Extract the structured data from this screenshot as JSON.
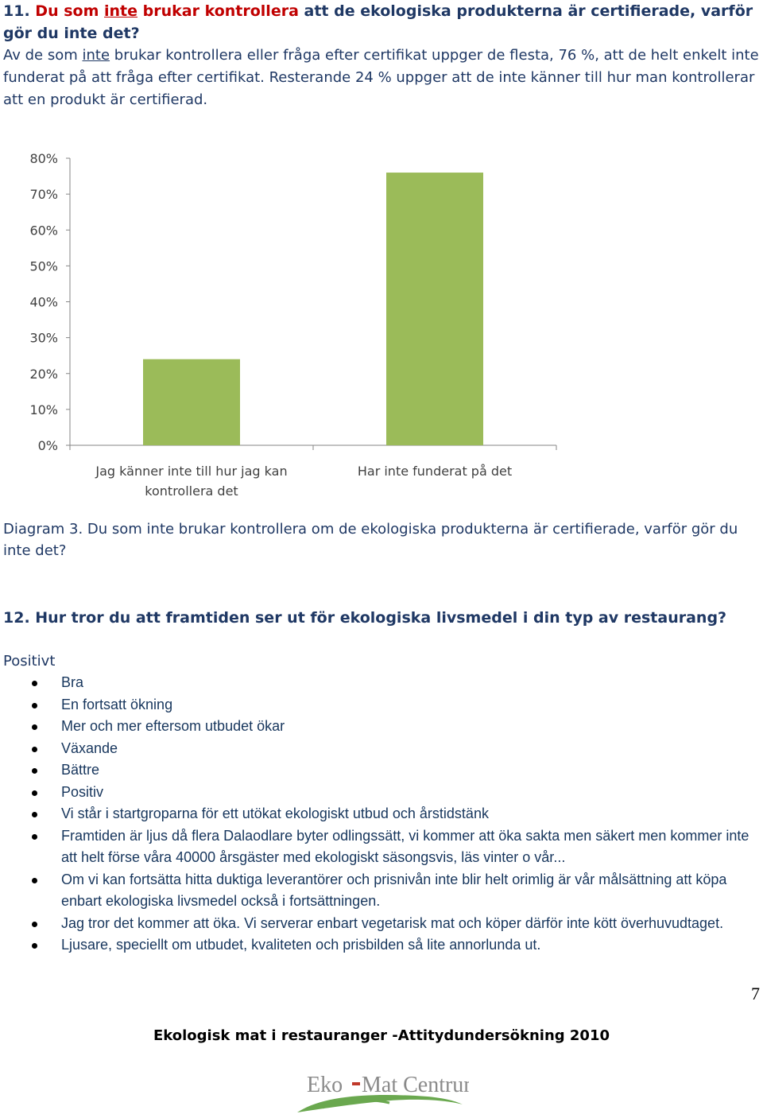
{
  "question11": {
    "number": "11.",
    "part1": "Du som",
    "underlined": "inte",
    "part2": "brukar kontrollera",
    "rest": "att de ekologiska produkterna är certifierade, varför gör du inte det?"
  },
  "intro": {
    "part1": "Av de som",
    "underlined": "inte",
    "part2": "brukar kontrollera eller fråga efter certifikat uppger de flesta, 76 %, att de helt enkelt inte funderat på att fråga efter certifikat. Resterande 24 % uppger att de inte känner till hur man kontrollerar att en produkt är certifierad."
  },
  "chart_data": {
    "type": "bar",
    "categories": [
      "Jag känner inte till hur jag kan kontrollera det",
      "Har inte funderat på det"
    ],
    "category_lines": [
      [
        "Jag känner inte till hur jag kan",
        "kontrollera det"
      ],
      [
        "Har inte funderat på det"
      ]
    ],
    "values": [
      24,
      76
    ],
    "ylim": [
      0,
      80
    ],
    "yticks": [
      "0%",
      "10%",
      "20%",
      "30%",
      "40%",
      "50%",
      "60%",
      "70%",
      "80%"
    ],
    "bar_color": "#9bbb59",
    "grid": false,
    "title": "",
    "xlabel": "",
    "ylabel": ""
  },
  "caption": "Diagram 3. Du som inte brukar kontrollera om de ekologiska produkterna är certifierade, varför gör du inte det?",
  "question12": "12. Hur tror du att framtiden ser ut för ekologiska livsmedel i din typ av restaurang?",
  "positive": {
    "heading": "Positivt",
    "items": [
      "Bra",
      "En fortsatt ökning",
      "Mer och mer eftersom utbudet ökar",
      "Växande",
      "Bättre",
      "Positiv",
      "Vi står i startgroparna för ett utökat ekologiskt utbud och årstidstänk",
      "Framtiden är ljus då flera Dalaodlare byter odlingssätt, vi kommer att öka sakta men säkert men kommer inte att helt förse våra 40000 årsgäster med ekologiskt säsongsvis, läs vinter o vår...",
      "Om vi kan fortsätta hitta duktiga leverantörer och prisnivån inte blir helt orimlig är vår målsättning att köpa enbart ekologiska livsmedel också i fortsättningen.",
      "Jag tror det kommer att öka. Vi serverar enbart vegetarisk mat och köper därför inte kött överhuvudtaget.",
      "Ljusare, speciellt om utbudet, kvaliteten och prisbilden så lite annorlunda ut."
    ]
  },
  "page_number": "7",
  "footer": "Ekologisk mat i restauranger -Attitydundersökning 2010",
  "logo": {
    "text_left": "Eko",
    "text_right": "Mat Centrum",
    "colors": {
      "text": "#8a8a8a",
      "leaf": "#6aa84f",
      "dash": "#c0392b"
    }
  }
}
